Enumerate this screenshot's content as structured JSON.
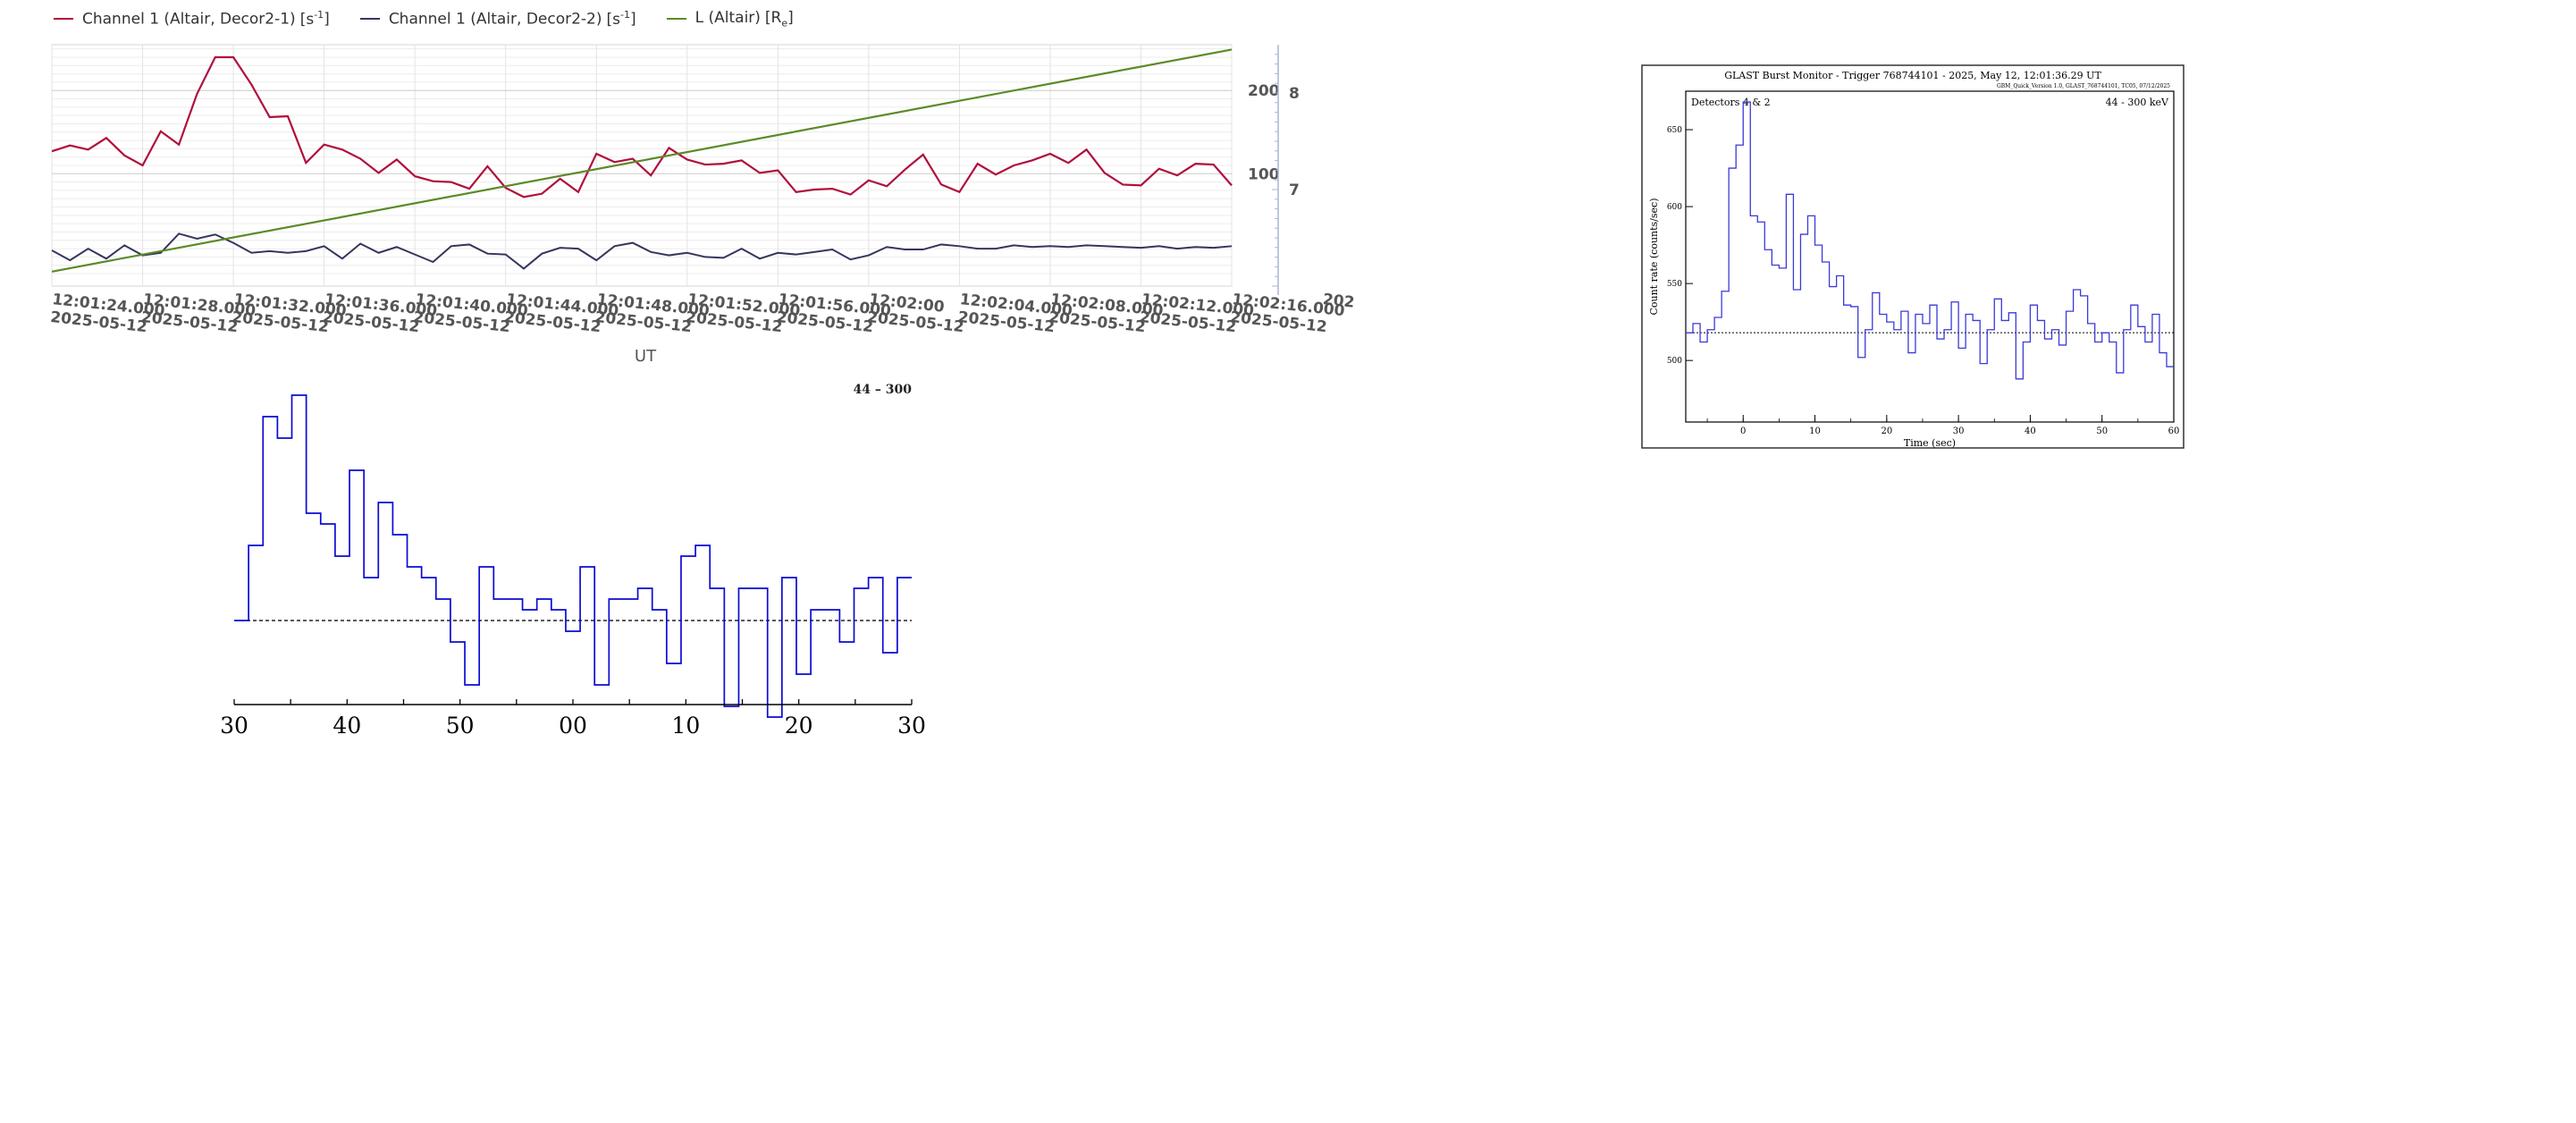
{
  "legend": [
    {
      "label": "Channel 1 (Altair, Decor2-1)",
      "unit": "[s",
      "unit_sup": "-1",
      "unit_end": "]",
      "color": "#b0103c"
    },
    {
      "label": "Channel 1 (Altair, Decor2-2)",
      "unit": "[s",
      "unit_sup": "-1",
      "unit_end": "]",
      "color": "#34365e"
    },
    {
      "label": "L (Altair)",
      "unit": "[R",
      "unit_sub": "e",
      "unit_end": "]",
      "color": "#5c8a28"
    }
  ],
  "chart_data": [
    {
      "type": "line",
      "xlabel": "UT",
      "x_tick_labels": [
        [
          "12:01:24.000",
          "2025-05-12"
        ],
        [
          "12:01:28.000",
          "2025-05-12"
        ],
        [
          "12:01:32.000",
          "2025-05-12"
        ],
        [
          "12:01:36.000",
          "2025-05-12"
        ],
        [
          "12:01:40.000",
          "2025-05-12"
        ],
        [
          "12:01:44.000",
          "2025-05-12"
        ],
        [
          "12:01:48.000",
          "2025-05-12"
        ],
        [
          "12:01:52.000",
          "2025-05-12"
        ],
        [
          "12:01:56.000",
          "2025-05-12"
        ],
        [
          "12:02:00",
          "2025-05-12"
        ],
        [
          "12:02:04.000",
          "2025-05-12"
        ],
        [
          "12:02:08.000",
          "2025-05-12"
        ],
        [
          "12:02:12.000",
          "2025-05-12"
        ],
        [
          "12:02:16.000",
          "2025-05-12"
        ],
        [
          "202",
          ""
        ]
      ],
      "y_left_ticks": [
        "100",
        "200"
      ],
      "y_left_range": [
        -35,
        255
      ],
      "y_right_ticks": [
        "7",
        "8"
      ],
      "y_right_range": [
        6.0,
        8.5
      ],
      "grid": true,
      "legend_position": "top-left",
      "x": [
        0,
        1,
        2,
        3,
        4,
        5,
        6,
        7,
        8,
        9,
        10,
        11,
        12,
        13,
        14,
        15,
        16,
        17,
        18,
        19,
        20,
        21,
        22,
        23,
        24,
        25,
        26,
        27,
        28,
        29,
        30,
        31,
        32,
        33,
        34,
        35,
        36,
        37,
        38,
        39,
        40,
        41,
        42,
        43,
        44,
        45,
        46,
        47,
        48,
        49,
        50,
        51,
        52,
        53,
        54,
        55,
        56,
        57,
        58,
        59,
        60,
        61,
        62,
        63,
        64,
        65
      ],
      "series": [
        {
          "name": "Channel 1 (Altair, Decor2-1) [s-1]",
          "axis": "left",
          "color": "#b0103c",
          "values": [
            127,
            134,
            129,
            143,
            122,
            110,
            151,
            135,
            196,
            240,
            240,
            207,
            168,
            169,
            113,
            135,
            129,
            118,
            101,
            117,
            97,
            91,
            90,
            82,
            109,
            83,
            72,
            76,
            94,
            78,
            124,
            114,
            118,
            98,
            131,
            117,
            111,
            112,
            116,
            101,
            104,
            78,
            81,
            82,
            75,
            92,
            85,
            105,
            123,
            87,
            78,
            112,
            99,
            110,
            116,
            124,
            113,
            129,
            101,
            87,
            86,
            106,
            98,
            112,
            111,
            86
          ]
        },
        {
          "name": "Channel 1 (Altair, Decor2-2) [s-1]",
          "axis": "left",
          "color": "#34365e",
          "values": [
            8,
            -4,
            10,
            -2,
            14,
            2,
            5,
            28,
            22,
            27,
            17,
            5,
            7,
            5,
            7,
            13,
            -2,
            16,
            5,
            12,
            3,
            -6,
            13,
            15,
            4,
            3,
            -14,
            4,
            11,
            10,
            -4,
            13,
            17,
            6,
            2,
            5,
            0,
            -1,
            10,
            -2,
            5,
            3,
            6,
            9,
            -3,
            2,
            12,
            9,
            9,
            15,
            13,
            10,
            10,
            14,
            12,
            13,
            12,
            14,
            13,
            12,
            11,
            13,
            10,
            12,
            11,
            13
          ]
        },
        {
          "name": "L (Altair) [Re]",
          "axis": "right",
          "color": "#5c8a28",
          "x_range": [
            0,
            65
          ],
          "values_endpoints": [
            6.15,
            8.45
          ]
        }
      ]
    },
    {
      "type": "line",
      "x_tick_labels": [
        "30",
        "40",
        "50",
        "00",
        "10",
        "20",
        "30"
      ],
      "annotation": "44 – 300",
      "background_level": 0,
      "color": "#0b0bd4",
      "values": [
        0,
        0.7,
        1.9,
        1.7,
        2.1,
        1,
        0.9,
        0.6,
        1.4,
        0.4,
        1.1,
        0.8,
        0.5,
        0.4,
        0.2,
        -0.2,
        -0.6,
        0.5,
        0.2,
        0.2,
        0.1,
        0.2,
        0.1,
        -0.1,
        0.5,
        -0.6,
        0.2,
        0.2,
        0.3,
        0.1,
        -0.4,
        0.6,
        0.7,
        0.3,
        -0.8,
        0.3,
        0.3,
        -0.9,
        0.4,
        -0.5,
        0.1,
        0.1,
        -0.2,
        0.3,
        0.4,
        -0.3,
        0.4
      ]
    },
    {
      "type": "line",
      "title": "GLAST Burst Monitor  -  Trigger 768744101  -  2025, May 12, 12:01:36.29 UT",
      "subtitle": "GBM_Quick_Version 1.0, GLAST_768744101, TC05, 07/12/2025",
      "detectors": "Detectors 4 & 2",
      "energy_band": "44 - 300 keV",
      "xlabel": "Time (sec)",
      "ylabel": "Count rate (counts/sec)",
      "xlim": [
        -8,
        60
      ],
      "ylim": [
        460,
        675
      ],
      "x_ticks": [
        "0",
        "10",
        "20",
        "30",
        "40",
        "50",
        "60"
      ],
      "y_ticks": [
        "500",
        "550",
        "600",
        "650"
      ],
      "background_rate": 518,
      "color": "#3a3ad8",
      "bin_width": 1,
      "bin_start": -8,
      "values": [
        518,
        524,
        512,
        520,
        528,
        545,
        625,
        640,
        668,
        594,
        590,
        572,
        562,
        560,
        608,
        546,
        582,
        594,
        575,
        564,
        548,
        555,
        536,
        535,
        502,
        520,
        544,
        530,
        525,
        520,
        532,
        505,
        530,
        524,
        536,
        514,
        520,
        538,
        508,
        530,
        526,
        498,
        520,
        540,
        526,
        531,
        488,
        512,
        536,
        526,
        514,
        520,
        510,
        532,
        546,
        542,
        524,
        512,
        518,
        512,
        492,
        520,
        536,
        522,
        512,
        530,
        505,
        496
      ]
    }
  ]
}
